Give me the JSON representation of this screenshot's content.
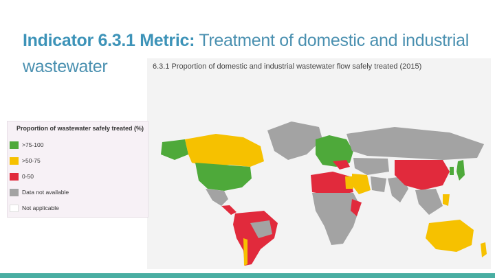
{
  "slide": {
    "title_bold": "Indicator 6.3.1 Metric:",
    "title_rest": " Treatment of domestic and industrial wastewater"
  },
  "map": {
    "caption": "6.3.1 Proportion of domestic and industrial wastewater flow safely treated (2015)",
    "colors": {
      "green": "#4ea93a",
      "yellow": "#f6c100",
      "red": "#e12a3c",
      "gray": "#a3a3a3",
      "white": "#ffffff"
    }
  },
  "legend": {
    "title": "Proportion of wastewater safely treated (%)",
    "items": [
      {
        "label": ">75-100",
        "color": "#4ea93a"
      },
      {
        "label": ">50-75",
        "color": "#f6c100"
      },
      {
        "label": "0-50",
        "color": "#e12a3c"
      },
      {
        "label": "Data not available",
        "color": "#a3a3a3"
      },
      {
        "label": "Not applicable",
        "color": "#ffffff"
      }
    ]
  }
}
